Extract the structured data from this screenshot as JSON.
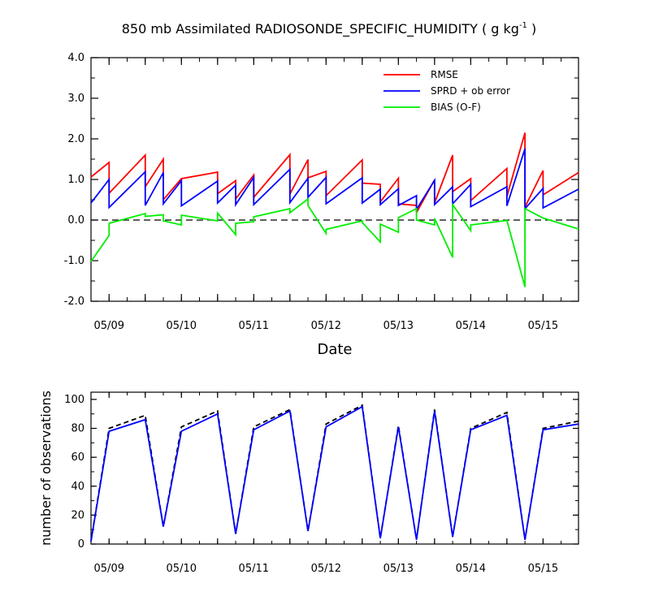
{
  "title": {
    "main": "850 mb Assimilated RADIOSONDE_SPECIFIC_HUMIDITY ( g kg",
    "superscript": "-1",
    "closing": " )"
  },
  "colors": {
    "rmse": "#ff0000",
    "sprd": "#0000ff",
    "bias": "#00ee00",
    "obs_possible": "#000000",
    "obs_used": "#0000ff",
    "zero_line": "#000000"
  },
  "chart_data": [
    {
      "type": "line",
      "xlabel": "Date",
      "ylabel": "",
      "xlim": [
        8.75,
        15.49
      ],
      "ylim": [
        -2.0,
        4.0
      ],
      "yticks": [
        {
          "value": 4.0,
          "label": "4.0"
        },
        {
          "value": 3.0,
          "label": "3.0"
        },
        {
          "value": 2.0,
          "label": "2.0"
        },
        {
          "value": 1.0,
          "label": "1.0"
        },
        {
          "value": 0.0,
          "label": "0.0"
        },
        {
          "value": -1.0,
          "label": "-1.0"
        },
        {
          "value": -2.0,
          "label": "-2.0"
        }
      ],
      "xticks": [
        {
          "value": 9,
          "label": "05/09"
        },
        {
          "value": 10,
          "label": "05/10"
        },
        {
          "value": 11,
          "label": "05/11"
        },
        {
          "value": 12,
          "label": "05/12"
        },
        {
          "value": 13,
          "label": "05/13"
        },
        {
          "value": 14,
          "label": "05/14"
        },
        {
          "value": 15,
          "label": "05/15"
        }
      ],
      "legend_position": "top-right",
      "reference_line": {
        "y": 0.0,
        "style": "dashed"
      },
      "series": [
        {
          "name": "RMSE",
          "color_key": "rmse",
          "points": [
            [
              8.75,
              1.06
            ],
            [
              9.0,
              1.42
            ],
            [
              9.0,
              0.66
            ],
            [
              9.5,
              1.6
            ],
            [
              9.5,
              0.82
            ],
            [
              9.75,
              1.5
            ],
            [
              9.75,
              0.5
            ],
            [
              10.0,
              1.02
            ],
            [
              10.5,
              1.18
            ],
            [
              10.5,
              0.65
            ],
            [
              10.75,
              0.97
            ],
            [
              10.75,
              0.52
            ],
            [
              11.0,
              1.11
            ],
            [
              11.0,
              0.56
            ],
            [
              11.5,
              1.61
            ],
            [
              11.5,
              0.64
            ],
            [
              11.75,
              1.49
            ],
            [
              11.75,
              1.04
            ],
            [
              12.0,
              1.2
            ],
            [
              12.0,
              0.6
            ],
            [
              12.5,
              1.48
            ],
            [
              12.5,
              0.91
            ],
            [
              12.75,
              0.88
            ],
            [
              12.75,
              0.45
            ],
            [
              13.0,
              1.03
            ],
            [
              13.0,
              0.4
            ],
            [
              13.25,
              0.36
            ],
            [
              13.25,
              0.18
            ],
            [
              13.5,
              0.99
            ],
            [
              13.5,
              0.42
            ],
            [
              13.75,
              1.6
            ],
            [
              13.75,
              0.7
            ],
            [
              14.0,
              1.02
            ],
            [
              14.0,
              0.48
            ],
            [
              14.5,
              1.27
            ],
            [
              14.5,
              0.58
            ],
            [
              14.75,
              2.15
            ],
            [
              14.75,
              0.32
            ],
            [
              15.0,
              1.22
            ],
            [
              15.0,
              0.62
            ],
            [
              15.49,
              1.17
            ]
          ]
        },
        {
          "name": "SPRD + ob error",
          "color_key": "sprd",
          "points": [
            [
              8.75,
              0.42
            ],
            [
              9.0,
              1.0
            ],
            [
              9.0,
              0.31
            ],
            [
              9.5,
              1.19
            ],
            [
              9.5,
              0.36
            ],
            [
              9.75,
              1.17
            ],
            [
              9.75,
              0.4
            ],
            [
              10.0,
              0.97
            ],
            [
              10.0,
              0.35
            ],
            [
              10.5,
              0.96
            ],
            [
              10.5,
              0.42
            ],
            [
              10.75,
              0.86
            ],
            [
              10.75,
              0.38
            ],
            [
              11.0,
              1.05
            ],
            [
              11.0,
              0.38
            ],
            [
              11.5,
              1.25
            ],
            [
              11.5,
              0.43
            ],
            [
              11.75,
              1.03
            ],
            [
              11.75,
              0.56
            ],
            [
              12.0,
              1.05
            ],
            [
              12.0,
              0.4
            ],
            [
              12.5,
              1.04
            ],
            [
              12.5,
              0.42
            ],
            [
              12.75,
              0.76
            ],
            [
              12.75,
              0.38
            ],
            [
              13.0,
              0.77
            ],
            [
              13.0,
              0.36
            ],
            [
              13.25,
              0.6
            ],
            [
              13.25,
              0.26
            ],
            [
              13.5,
              0.98
            ],
            [
              13.5,
              0.38
            ],
            [
              13.75,
              0.82
            ],
            [
              13.75,
              0.4
            ],
            [
              14.0,
              0.88
            ],
            [
              14.0,
              0.33
            ],
            [
              14.5,
              0.82
            ],
            [
              14.5,
              0.35
            ],
            [
              14.75,
              1.76
            ],
            [
              14.75,
              0.28
            ],
            [
              15.0,
              0.78
            ],
            [
              15.0,
              0.3
            ],
            [
              15.49,
              0.76
            ]
          ]
        },
        {
          "name": "BIAS (O-F)",
          "color_key": "bias",
          "points": [
            [
              8.75,
              -1.02
            ],
            [
              9.0,
              -0.38
            ],
            [
              9.0,
              -0.08
            ],
            [
              9.5,
              0.16
            ],
            [
              9.5,
              0.09
            ],
            [
              9.75,
              0.13
            ],
            [
              9.75,
              -0.02
            ],
            [
              10.0,
              -0.12
            ],
            [
              10.0,
              0.12
            ],
            [
              10.5,
              -0.02
            ],
            [
              10.5,
              0.17
            ],
            [
              10.75,
              -0.36
            ],
            [
              10.75,
              -0.08
            ],
            [
              11.0,
              -0.04
            ],
            [
              11.0,
              0.08
            ],
            [
              11.5,
              0.28
            ],
            [
              11.5,
              0.18
            ],
            [
              11.75,
              0.52
            ],
            [
              11.75,
              0.36
            ],
            [
              12.0,
              -0.33
            ],
            [
              12.0,
              -0.23
            ],
            [
              12.5,
              -0.02
            ],
            [
              12.5,
              -0.06
            ],
            [
              12.75,
              -0.54
            ],
            [
              12.75,
              -0.1
            ],
            [
              13.0,
              -0.3
            ],
            [
              13.0,
              0.06
            ],
            [
              13.25,
              0.28
            ],
            [
              13.25,
              0.0
            ],
            [
              13.5,
              -0.12
            ],
            [
              13.5,
              0.04
            ],
            [
              13.75,
              -0.92
            ],
            [
              13.75,
              0.38
            ],
            [
              14.0,
              -0.26
            ],
            [
              14.0,
              -0.12
            ],
            [
              14.5,
              -0.01
            ],
            [
              14.75,
              -1.65
            ],
            [
              14.75,
              0.28
            ],
            [
              15.0,
              0.05
            ],
            [
              15.49,
              -0.22
            ]
          ]
        }
      ]
    },
    {
      "type": "line",
      "xlabel": "",
      "ylabel": "number of observations",
      "xlim": [
        8.75,
        15.49
      ],
      "ylim": [
        0,
        105
      ],
      "yticks": [
        {
          "value": 100,
          "label": "100"
        },
        {
          "value": 80,
          "label": "80"
        },
        {
          "value": 60,
          "label": "60"
        },
        {
          "value": 40,
          "label": "40"
        },
        {
          "value": 20,
          "label": "20"
        },
        {
          "value": 0,
          "label": "0"
        }
      ],
      "xticks": [
        {
          "value": 9,
          "label": "05/09"
        },
        {
          "value": 10,
          "label": "05/10"
        },
        {
          "value": 11,
          "label": "05/11"
        },
        {
          "value": 12,
          "label": "05/12"
        },
        {
          "value": 13,
          "label": "05/13"
        },
        {
          "value": 14,
          "label": "05/14"
        },
        {
          "value": 15,
          "label": "05/15"
        }
      ],
      "series": [
        {
          "color_key": "obs_possible",
          "style": "dashed",
          "points": [
            [
              8.75,
              2
            ],
            [
              9.0,
              80
            ],
            [
              9.5,
              89
            ],
            [
              9.75,
              12
            ],
            [
              10.0,
              81
            ],
            [
              10.5,
              92
            ],
            [
              10.75,
              7
            ],
            [
              11.0,
              81
            ],
            [
              11.5,
              93
            ],
            [
              11.75,
              9
            ],
            [
              12.0,
              83
            ],
            [
              12.5,
              96
            ],
            [
              12.75,
              4
            ],
            [
              13.0,
              82
            ],
            [
              13.25,
              3
            ],
            [
              13.5,
              93
            ],
            [
              13.75,
              5
            ],
            [
              14.0,
              80
            ],
            [
              14.5,
              91
            ],
            [
              14.75,
              3
            ],
            [
              15.0,
              80
            ],
            [
              15.49,
              85
            ]
          ]
        },
        {
          "color_key": "obs_used",
          "style": "solid",
          "points": [
            [
              8.75,
              2
            ],
            [
              9.0,
              78
            ],
            [
              9.5,
              86
            ],
            [
              9.75,
              12
            ],
            [
              10.0,
              78
            ],
            [
              10.5,
              90
            ],
            [
              10.75,
              7
            ],
            [
              11.0,
              79
            ],
            [
              11.5,
              92
            ],
            [
              11.75,
              9
            ],
            [
              12.0,
              81
            ],
            [
              12.5,
              95
            ],
            [
              12.75,
              4
            ],
            [
              13.0,
              81
            ],
            [
              13.25,
              3
            ],
            [
              13.5,
              92
            ],
            [
              13.75,
              5
            ],
            [
              14.0,
              79
            ],
            [
              14.5,
              89
            ],
            [
              14.75,
              3
            ],
            [
              15.0,
              79
            ],
            [
              15.49,
              83
            ]
          ]
        }
      ]
    }
  ]
}
